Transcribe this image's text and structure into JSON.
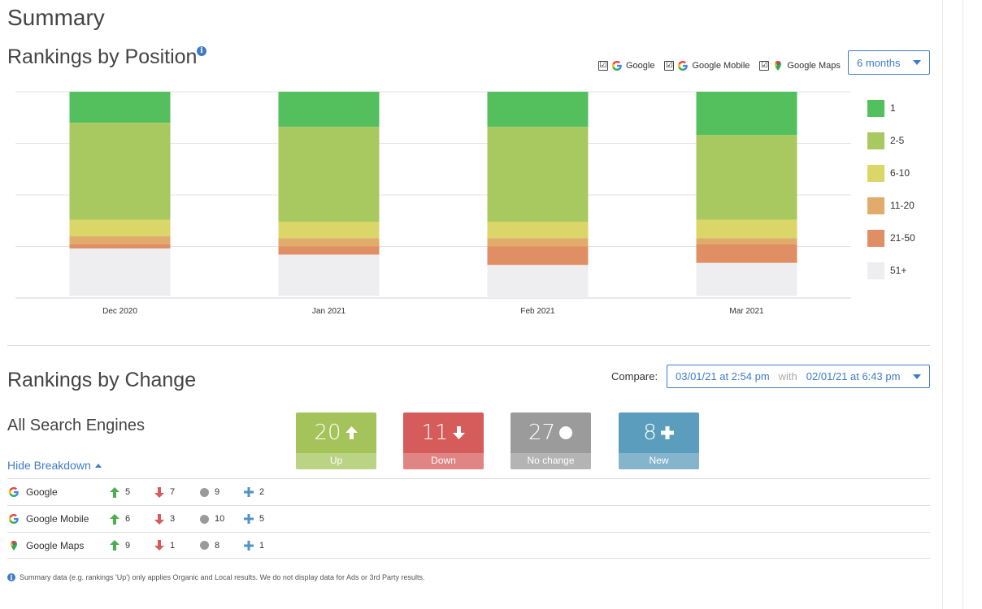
{
  "page_title": "Summary",
  "position_section": {
    "title": "Rankings by Position",
    "info_icon": "info-icon",
    "engines": [
      {
        "label": "Google",
        "checked": "☑",
        "icon": "google-icon"
      },
      {
        "label": "Google Mobile",
        "checked": "☑",
        "icon": "google-icon"
      },
      {
        "label": "Google Maps",
        "checked": "☑",
        "icon": "google-maps-icon"
      }
    ],
    "period_dropdown": "6 months"
  },
  "chart_data": {
    "type": "bar",
    "stacked": true,
    "orientation": "vertical",
    "categories": [
      "Dec 2020",
      "Jan 2021",
      "Feb 2021",
      "Mar 2021"
    ],
    "series": [
      {
        "name": "1",
        "color": "#53bf5d",
        "values": [
          15,
          17,
          17,
          21
        ]
      },
      {
        "name": "2-5",
        "color": "#a8c960",
        "values": [
          47,
          46,
          46,
          41
        ]
      },
      {
        "name": "6-10",
        "color": "#dbd668",
        "values": [
          8,
          8,
          8,
          9
        ]
      },
      {
        "name": "11-20",
        "color": "#e1ac6b",
        "values": [
          4,
          4,
          4,
          3
        ]
      },
      {
        "name": "21-50",
        "color": "#df8f63",
        "values": [
          2,
          4,
          9,
          9
        ]
      },
      {
        "name": "51+",
        "color": "#eeeef0",
        "values": [
          23,
          20,
          16,
          16
        ]
      }
    ],
    "ylim": [
      0,
      100
    ],
    "title": "",
    "xlabel": "",
    "ylabel": "",
    "grid": true,
    "legend": "right"
  },
  "change_section": {
    "title": "Rankings by Change",
    "compare_label": "Compare:",
    "compare_from": "03/01/21 at 2:54 pm",
    "compare_with": "with",
    "compare_to": "02/01/21 at 6:43 pm",
    "all_engines_label": "All Search Engines",
    "hide_breakdown": "Hide Breakdown",
    "tiles": [
      {
        "value": "20",
        "label": "Up",
        "color": "#a4c45b",
        "icon": "arrow-up-icon"
      },
      {
        "value": "11",
        "label": "Down",
        "color": "#d65b5b",
        "icon": "arrow-down-icon"
      },
      {
        "value": "27",
        "label": "No change",
        "color": "#9b9b9b",
        "icon": "circle-icon"
      },
      {
        "value": "8",
        "label": "New",
        "color": "#5b9dbd",
        "icon": "plus-icon"
      }
    ],
    "breakdown": [
      {
        "engine": "Google",
        "icon": "google-icon",
        "up": "5",
        "down": "7",
        "same": "9",
        "new": "2"
      },
      {
        "engine": "Google Mobile",
        "icon": "google-icon",
        "up": "6",
        "down": "3",
        "same": "10",
        "new": "5"
      },
      {
        "engine": "Google Maps",
        "icon": "google-maps-icon",
        "up": "9",
        "down": "1",
        "same": "8",
        "new": "1"
      }
    ]
  },
  "footnote": "Summary data (e.g. rankings 'Up') only applies Organic and Local results. We do not display data for Ads or 3rd Party results."
}
